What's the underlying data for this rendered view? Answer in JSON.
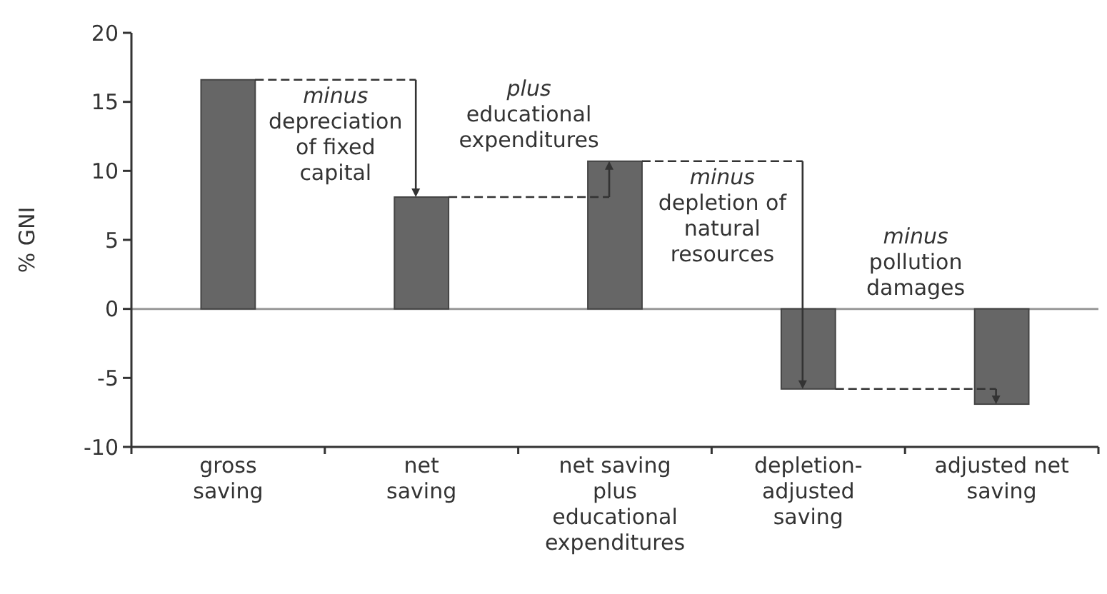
{
  "chart_data": {
    "type": "bar",
    "categories": [
      "gross\nsaving",
      "net\nsaving",
      "net saving\nplus\neducational\nexpenditures",
      "depletion-\nadjusted\nsaving",
      "adjusted net\nsaving"
    ],
    "values": [
      16.6,
      8.1,
      10.7,
      -5.8,
      -6.9
    ],
    "color": "#666666",
    "ylabel": "% GNI",
    "ylim": [
      -10,
      20
    ],
    "yticks": [
      -10,
      -5,
      0,
      5,
      10,
      15,
      20
    ],
    "ref_lines": [
      {
        "axis": "y",
        "value": 0,
        "color": "#999999"
      }
    ],
    "annotations": [
      "minus\ndepreciation\nof fixed\ncapital",
      "plus\neducational\nexpenditures",
      "minus\ndepletion of\nnatural\nresources",
      "minus\npollution\ndamages"
    ],
    "grid": false
  }
}
